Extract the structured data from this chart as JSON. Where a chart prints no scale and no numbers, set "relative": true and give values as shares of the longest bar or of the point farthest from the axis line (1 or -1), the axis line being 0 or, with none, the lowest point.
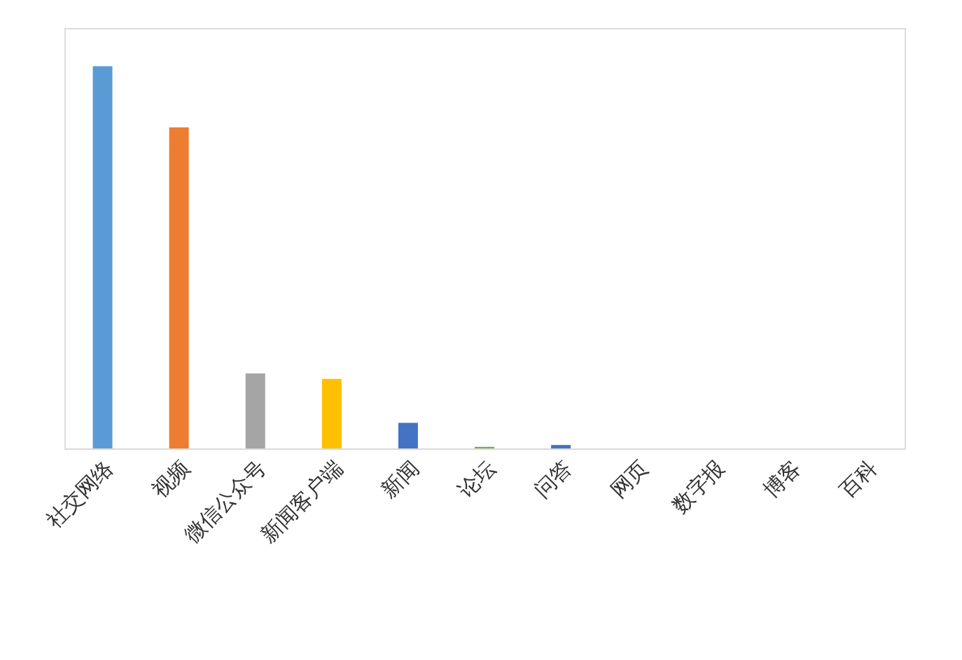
{
  "chart_data": {
    "type": "bar",
    "relative": true,
    "categories": [
      "社交网络",
      "视频",
      "微信公众号",
      "新闻客户端",
      "新闻",
      "论坛",
      "问答",
      "网页",
      "数字报",
      "博客",
      "百科"
    ],
    "values": [
      1,
      0.84,
      0.196,
      0.182,
      0.067,
      0.004,
      0.009,
      0,
      0,
      0,
      0
    ],
    "colors": [
      "#5b9bd5",
      "#ed7d31",
      "#a5a5a5",
      "#ffc000",
      "#4472c4",
      "#70ad47",
      "#4472c4",
      "#255e91",
      "#9e480e",
      "#636363",
      "#997300"
    ],
    "grid": false
  }
}
